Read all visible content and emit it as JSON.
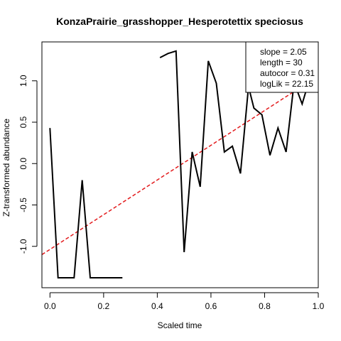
{
  "chart_data": {
    "type": "line",
    "title": "KonzaPrairie_grasshopper_Hesperotettix speciosus",
    "xlabel": "Scaled time",
    "ylabel": "Z-transformed abundance",
    "xlim": [
      -0.03,
      1.0
    ],
    "ylim": [
      -1.5,
      1.47
    ],
    "x_ticks": [
      0.0,
      0.2,
      0.4,
      0.6,
      0.8,
      1.0
    ],
    "x_tick_labels": [
      "0.0",
      "0.2",
      "0.4",
      "0.6",
      "0.8",
      "1.0"
    ],
    "y_ticks": [
      -1.0,
      -0.5,
      0.0,
      0.5,
      1.0
    ],
    "y_tick_labels": [
      "-1.0",
      "-0.5",
      "0.0",
      "0.5",
      "1.0"
    ],
    "series": [
      {
        "style": "solid",
        "color": "#000000",
        "segments": [
          [
            [
              0.0,
              0.43
            ],
            [
              0.03,
              -1.38
            ],
            [
              0.09,
              -1.38
            ],
            [
              0.12,
              -0.2
            ],
            [
              0.15,
              -1.38
            ],
            [
              0.27,
              -1.38
            ]
          ],
          [
            [
              0.41,
              1.28
            ],
            [
              0.44,
              1.33
            ],
            [
              0.47,
              1.36
            ],
            [
              0.5,
              -1.07
            ],
            [
              0.53,
              0.14
            ],
            [
              0.56,
              -0.28
            ],
            [
              0.59,
              1.24
            ],
            [
              0.62,
              0.97
            ],
            [
              0.65,
              0.14
            ],
            [
              0.68,
              0.21
            ],
            [
              0.71,
              -0.12
            ],
            [
              0.74,
              0.93
            ],
            [
              0.76,
              0.67
            ],
            [
              0.79,
              0.59
            ],
            [
              0.82,
              0.1
            ],
            [
              0.85,
              0.43
            ],
            [
              0.88,
              0.14
            ],
            [
              0.91,
              0.98
            ],
            [
              0.94,
              0.72
            ],
            [
              0.97,
              1.05
            ]
          ]
        ]
      }
    ],
    "trend_line": {
      "style": "dashed",
      "color": "#e31a1c",
      "points": [
        [
          -0.03,
          -1.1
        ],
        [
          1.0,
          1.06
        ]
      ]
    },
    "legend": {
      "placement": "top-right",
      "entries": [
        "slope = 2.05",
        "length = 30",
        "autocor = 0.31",
        "logLik = 22.15"
      ]
    }
  }
}
